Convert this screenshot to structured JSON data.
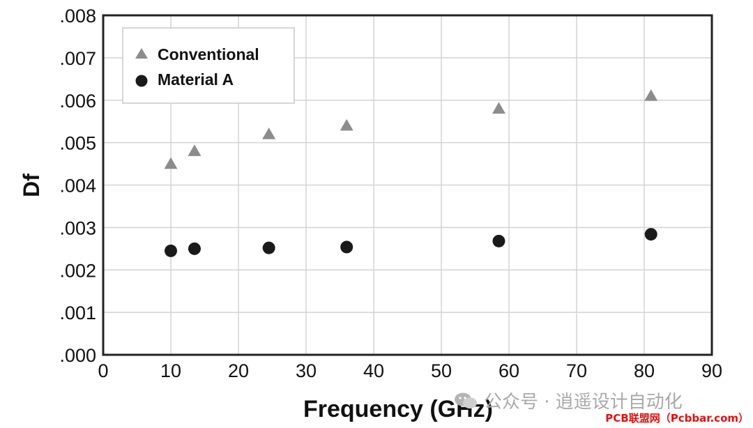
{
  "chart_data": {
    "type": "scatter",
    "title": "",
    "xlabel": "Frequency (GHz)",
    "ylabel": "Df",
    "xlim": [
      0,
      90
    ],
    "ylim": [
      0,
      0.008
    ],
    "x_ticks": [
      "0",
      "10",
      "20",
      "30",
      "40",
      "50",
      "60",
      "70",
      "80",
      "90"
    ],
    "y_ticks": [
      ".000",
      ".001",
      ".002",
      ".003",
      ".004",
      ".005",
      ".006",
      ".007",
      ".008"
    ],
    "grid": true,
    "legend_position": "top-left",
    "series": [
      {
        "name": "Conventional",
        "marker": "triangle",
        "color": "#8c8c8c",
        "points": [
          {
            "x": 10,
            "y": 0.0045
          },
          {
            "x": 13.5,
            "y": 0.0048
          },
          {
            "x": 24.5,
            "y": 0.0052
          },
          {
            "x": 36,
            "y": 0.0054
          },
          {
            "x": 58.5,
            "y": 0.0058
          },
          {
            "x": 81,
            "y": 0.0061
          }
        ]
      },
      {
        "name": "Material A",
        "marker": "circle",
        "color": "#1a1a1a",
        "points": [
          {
            "x": 10,
            "y": 0.00245
          },
          {
            "x": 13.5,
            "y": 0.0025
          },
          {
            "x": 24.5,
            "y": 0.00252
          },
          {
            "x": 36,
            "y": 0.00254
          },
          {
            "x": 58.5,
            "y": 0.00268
          },
          {
            "x": 81,
            "y": 0.00284
          }
        ]
      }
    ]
  },
  "watermark": {
    "text": "公众号 · 逍遥设计自动化",
    "icon": "wechat-icon"
  },
  "credit": {
    "text": "PCB联盟网（Pcbbar.com）"
  }
}
